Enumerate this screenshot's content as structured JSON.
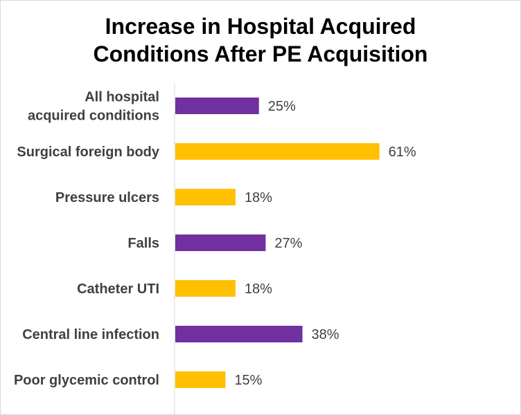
{
  "chart_data": {
    "type": "bar",
    "orientation": "horizontal",
    "title": "Increase in Hospital Acquired\nConditions After PE Acquisition",
    "categories": [
      [
        "All hospital",
        "acquired conditions"
      ],
      [
        "Surgical foreign body"
      ],
      [
        "Pressure ulcers"
      ],
      [
        "Falls"
      ],
      [
        "Catheter UTI"
      ],
      [
        "Central line infection"
      ],
      [
        "Poor glycemic control"
      ]
    ],
    "values": [
      25,
      61,
      18,
      27,
      18,
      38,
      15
    ],
    "value_labels": [
      "25%",
      "61%",
      "18%",
      "27%",
      "18%",
      "38%",
      "15%"
    ],
    "bar_colors": [
      "#7030A0",
      "#FFC000",
      "#FFC000",
      "#7030A0",
      "#FFC000",
      "#7030A0",
      "#FFC000"
    ],
    "xlim": [
      0,
      100
    ],
    "grid": false,
    "legend": "none"
  }
}
